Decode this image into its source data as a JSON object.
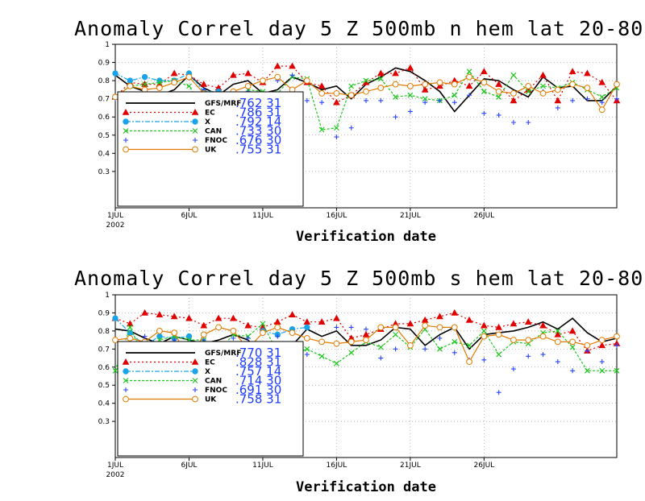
{
  "chart_data": [
    {
      "type": "line",
      "title": "Anomaly Correl   day 5  Z 500mb   n hem   lat 20-80",
      "xlabel": "Verification date",
      "ylabel": "",
      "ylim": [
        0.1,
        1.0
      ],
      "yticks": [
        "0.3",
        "0.4",
        "0.5",
        "0.6",
        "0.7",
        "0.8",
        "0.9",
        "1"
      ],
      "xticks": [
        "1JUL",
        "6JUL",
        "11JUL",
        "16JUL",
        "21JUL",
        "26JUL"
      ],
      "xtick_year": "2002",
      "grid": true,
      "legend_position": "bottom-left",
      "series": [
        {
          "name": "GFS/MRF",
          "score": ".762",
          "count": "31",
          "color": "#000000",
          "dash": "",
          "marker": "none",
          "values": [
            0.83,
            0.77,
            0.74,
            0.72,
            0.75,
            0.83,
            0.76,
            0.72,
            0.78,
            0.8,
            0.73,
            0.75,
            0.82,
            0.79,
            0.75,
            0.77,
            0.7,
            0.78,
            0.82,
            0.87,
            0.85,
            0.8,
            0.74,
            0.63,
            0.72,
            0.81,
            0.8,
            0.75,
            0.71,
            0.82,
            0.76,
            0.77,
            0.69,
            0.69,
            0.77
          ]
        },
        {
          "name": "EC",
          "score": ".786",
          "count": "31",
          "color": "#e00000",
          "dash": "2,3",
          "marker": "triangle",
          "values": [
            0.71,
            0.79,
            0.78,
            0.78,
            0.84,
            0.83,
            0.78,
            0.76,
            0.83,
            0.84,
            0.79,
            0.88,
            0.88,
            0.79,
            0.77,
            0.68,
            0.72,
            0.79,
            0.84,
            0.84,
            0.87,
            0.75,
            0.77,
            0.8,
            0.77,
            0.85,
            0.78,
            0.69,
            0.75,
            0.83,
            0.69,
            0.85,
            0.84,
            0.79,
            0.69
          ]
        },
        {
          "name": "X",
          "score": ".792",
          "count": "14",
          "color": "#1aa3e8",
          "dash": "6,2,2,2",
          "marker": "circle",
          "values": [
            0.84,
            0.8,
            0.82,
            0.8,
            0.8,
            0.84,
            0.74,
            0.74,
            null,
            null,
            null,
            null,
            null,
            null,
            null,
            null,
            null,
            null,
            null,
            null,
            null,
            null,
            null,
            null,
            null,
            null,
            null,
            null,
            null,
            null,
            null,
            null,
            null,
            null,
            null
          ]
        },
        {
          "name": "CAN",
          "score": ".733",
          "count": "30",
          "color": "#1ec81e",
          "dash": "3,2",
          "marker": "x",
          "values": [
            0.71,
            0.77,
            0.78,
            0.79,
            0.8,
            0.77,
            0.64,
            0.7,
            0.62,
            0.75,
            0.74,
            0.73,
            0.82,
            0.81,
            0.53,
            0.54,
            0.77,
            0.8,
            0.81,
            0.71,
            0.72,
            0.7,
            0.69,
            0.72,
            0.85,
            0.74,
            0.71,
            0.83,
            0.74,
            0.77,
            0.76,
            0.79,
            0.75,
            0.71,
            0.76
          ]
        },
        {
          "name": "FNOC",
          "score": ".676",
          "count": "30",
          "color": "#2a45ff",
          "dash": "",
          "marker": "plus",
          "values": [
            0.7,
            0.69,
            0.69,
            0.71,
            0.7,
            0.68,
            0.75,
            0.55,
            0.63,
            0.74,
            0.63,
            0.8,
            0.83,
            0.69,
            0.68,
            0.49,
            0.54,
            0.69,
            0.69,
            0.6,
            0.63,
            0.68,
            0.69,
            0.68,
            0.72,
            0.62,
            0.61,
            0.57,
            0.57,
            0.74,
            0.65,
            0.69,
            0.7,
            0.68,
            0.7
          ]
        },
        {
          "name": "UK",
          "score": ".755",
          "count": "31",
          "color": "#e07a00",
          "dash": "",
          "marker": "diamond",
          "values": [
            0.71,
            0.77,
            0.75,
            0.76,
            0.79,
            0.82,
            0.73,
            0.7,
            0.74,
            0.77,
            0.8,
            0.82,
            0.75,
            0.8,
            0.73,
            0.73,
            0.72,
            0.74,
            0.76,
            0.78,
            0.77,
            0.78,
            0.79,
            0.78,
            0.82,
            0.79,
            0.74,
            0.73,
            0.77,
            0.73,
            0.75,
            0.78,
            0.76,
            0.64,
            0.78
          ]
        }
      ]
    },
    {
      "type": "line",
      "title": "Anomaly Correl   day 5  Z 500mb   s hem   lat 20-80",
      "xlabel": "Verification date",
      "ylabel": "",
      "ylim": [
        0.1,
        1.0
      ],
      "yticks": [
        "0.3",
        "0.4",
        "0.5",
        "0.6",
        "0.7",
        "0.8",
        "0.9",
        "1"
      ],
      "xticks": [
        "1JUL",
        "6JUL",
        "11JUL",
        "16JUL",
        "21JUL",
        "26JUL"
      ],
      "xtick_year": "2002",
      "grid": true,
      "legend_position": "bottom-left",
      "series": [
        {
          "name": "GFS/MRF",
          "score": ".770",
          "count": "31",
          "color": "#000000",
          "dash": "",
          "marker": "none",
          "values": [
            0.81,
            0.8,
            0.76,
            0.73,
            0.77,
            0.75,
            0.73,
            0.75,
            0.78,
            0.75,
            0.66,
            0.73,
            0.72,
            0.81,
            0.77,
            0.8,
            0.72,
            0.72,
            0.75,
            0.82,
            0.81,
            0.72,
            0.78,
            0.82,
            0.7,
            0.78,
            0.79,
            0.8,
            0.82,
            0.85,
            0.81,
            0.87,
            0.79,
            0.74,
            0.76
          ]
        },
        {
          "name": "EC",
          "score": ".828",
          "count": "31",
          "color": "#e00000",
          "dash": "2,3",
          "marker": "triangle",
          "values": [
            0.87,
            0.84,
            0.9,
            0.89,
            0.88,
            0.87,
            0.83,
            0.87,
            0.87,
            0.83,
            0.82,
            0.85,
            0.89,
            0.85,
            0.85,
            0.87,
            0.76,
            0.78,
            0.81,
            0.84,
            0.84,
            0.86,
            0.88,
            0.9,
            0.86,
            0.83,
            0.82,
            0.84,
            0.85,
            0.83,
            0.78,
            0.8,
            0.69,
            0.72,
            0.73
          ]
        },
        {
          "name": "X",
          "score": ".757",
          "count": "14",
          "color": "#1aa3e8",
          "dash": "6,2,2,2",
          "marker": "circle",
          "values": [
            0.87,
            0.79,
            0.72,
            0.77,
            0.76,
            0.77,
            0.64,
            0.71,
            null,
            null,
            0.8,
            0.78,
            0.81,
            0.82,
            null,
            null,
            null,
            null,
            null,
            null,
            null,
            null,
            null,
            null,
            null,
            null,
            null,
            null,
            null,
            null,
            null,
            null,
            null,
            null,
            null
          ]
        },
        {
          "name": "CAN",
          "score": ".714",
          "count": "30",
          "color": "#1ec81e",
          "dash": "3,2",
          "marker": "x",
          "values": [
            0.58,
            0.82,
            0.65,
            0.75,
            0.77,
            0.75,
            0.75,
            0.69,
            0.78,
            0.77,
            0.84,
            0.68,
            0.67,
            0.7,
            0.66,
            0.62,
            0.68,
            0.74,
            0.71,
            0.78,
            0.71,
            0.81,
            0.7,
            0.74,
            0.72,
            0.8,
            0.67,
            0.74,
            0.73,
            0.79,
            0.8,
            0.71,
            0.58,
            0.58,
            0.58
          ]
        },
        {
          "name": "FNOC",
          "score": ".691",
          "count": "30",
          "color": "#2a45ff",
          "dash": "",
          "marker": "plus",
          "values": [
            0.75,
            0.71,
            0.77,
            0.7,
            0.75,
            0.73,
            0.75,
            0.69,
            0.76,
            0.76,
            0.72,
            0.77,
            0.54,
            0.67,
            0.74,
            0.82,
            0.82,
            0.81,
            0.65,
            0.7,
            0.72,
            0.7,
            0.76,
            0.68,
            0.64,
            0.64,
            0.46,
            0.59,
            0.66,
            0.67,
            0.63,
            0.58,
            0.69,
            0.63,
            0.72
          ]
        },
        {
          "name": "UK",
          "score": ".758",
          "count": "31",
          "color": "#e07a00",
          "dash": "",
          "marker": "diamond",
          "values": [
            0.75,
            0.76,
            0.74,
            0.8,
            0.79,
            0.64,
            0.78,
            0.82,
            0.8,
            0.7,
            0.79,
            0.82,
            0.79,
            0.76,
            0.74,
            0.73,
            0.74,
            0.75,
            0.82,
            0.82,
            0.72,
            0.83,
            0.82,
            0.82,
            0.63,
            0.77,
            0.78,
            0.75,
            0.75,
            0.77,
            0.74,
            0.74,
            0.72,
            0.75,
            0.77
          ]
        }
      ]
    }
  ]
}
